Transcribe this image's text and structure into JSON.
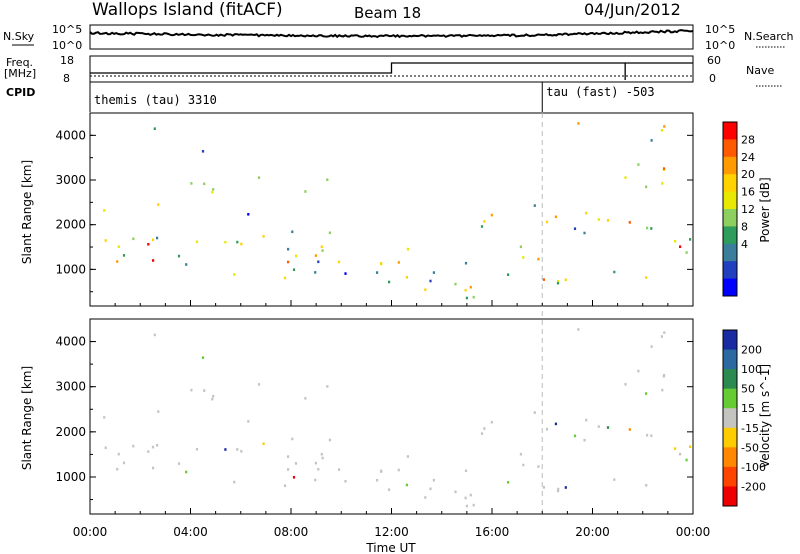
{
  "header": {
    "site": "Wallops Island (fitACF)",
    "beam": "Beam 18",
    "date": "04/Jun/2012"
  },
  "noise_panel": {
    "left_label": "N.Sky",
    "right_label": "N.Search",
    "left_ticks": [
      "10^5",
      "10^0"
    ],
    "right_ticks": [
      "10^5",
      "10^0"
    ]
  },
  "freq_panel": {
    "left_label": "Freq.",
    "left_unit": "[MHz]",
    "right_label": "Nave",
    "left_ticks": [
      "18",
      "8"
    ],
    "right_ticks": [
      "60",
      "0"
    ]
  },
  "cpid_panel": {
    "label": "CPID",
    "modes": [
      {
        "name": "themis (tau) 3310",
        "start_hour": 0
      },
      {
        "name": "tau (fast) -503",
        "start_hour": 18
      }
    ]
  },
  "chart_data": [
    {
      "type": "heatmap",
      "name": "power",
      "ylabel": "Slant Range [km]",
      "yticks": [
        "1000",
        "2000",
        "3000",
        "4000"
      ],
      "colorbar_label": "Power [dB]",
      "colorbar_ticks": [
        "28",
        "24",
        "20",
        "16",
        "12",
        "8",
        "4"
      ],
      "colors": [
        "#ff0000",
        "#ff5a00",
        "#ff9a00",
        "#ffd200",
        "#e8e800",
        "#8ed060",
        "#2e9c5a",
        "#3b7e9c",
        "#2040c0",
        "#0000ff"
      ],
      "ylim": [
        180,
        4500
      ],
      "xlim_hours": [
        0,
        24
      ]
    },
    {
      "type": "heatmap",
      "name": "velocity",
      "ylabel": "Slant Range [km]",
      "yticks": [
        "1000",
        "2000",
        "3000",
        "4000"
      ],
      "colorbar_label": "Velocity [m s^-1]",
      "colorbar_ticks": [
        "200",
        "100",
        "50",
        "15",
        "-15",
        "-50",
        "-100",
        "-200"
      ],
      "colors": [
        "#1a2aa0",
        "#2a6aa0",
        "#2a8a50",
        "#66cc33",
        "#c4c4c0",
        "#ffcc00",
        "#ff8800",
        "#ff4400",
        "#ee0000"
      ],
      "ylim": [
        180,
        4500
      ],
      "xlim_hours": [
        0,
        24
      ]
    }
  ],
  "xaxis": {
    "ticks": [
      "00:00",
      "04:00",
      "08:00",
      "12:00",
      "16:00",
      "20:00",
      "00:00"
    ],
    "label": "Time UT"
  }
}
